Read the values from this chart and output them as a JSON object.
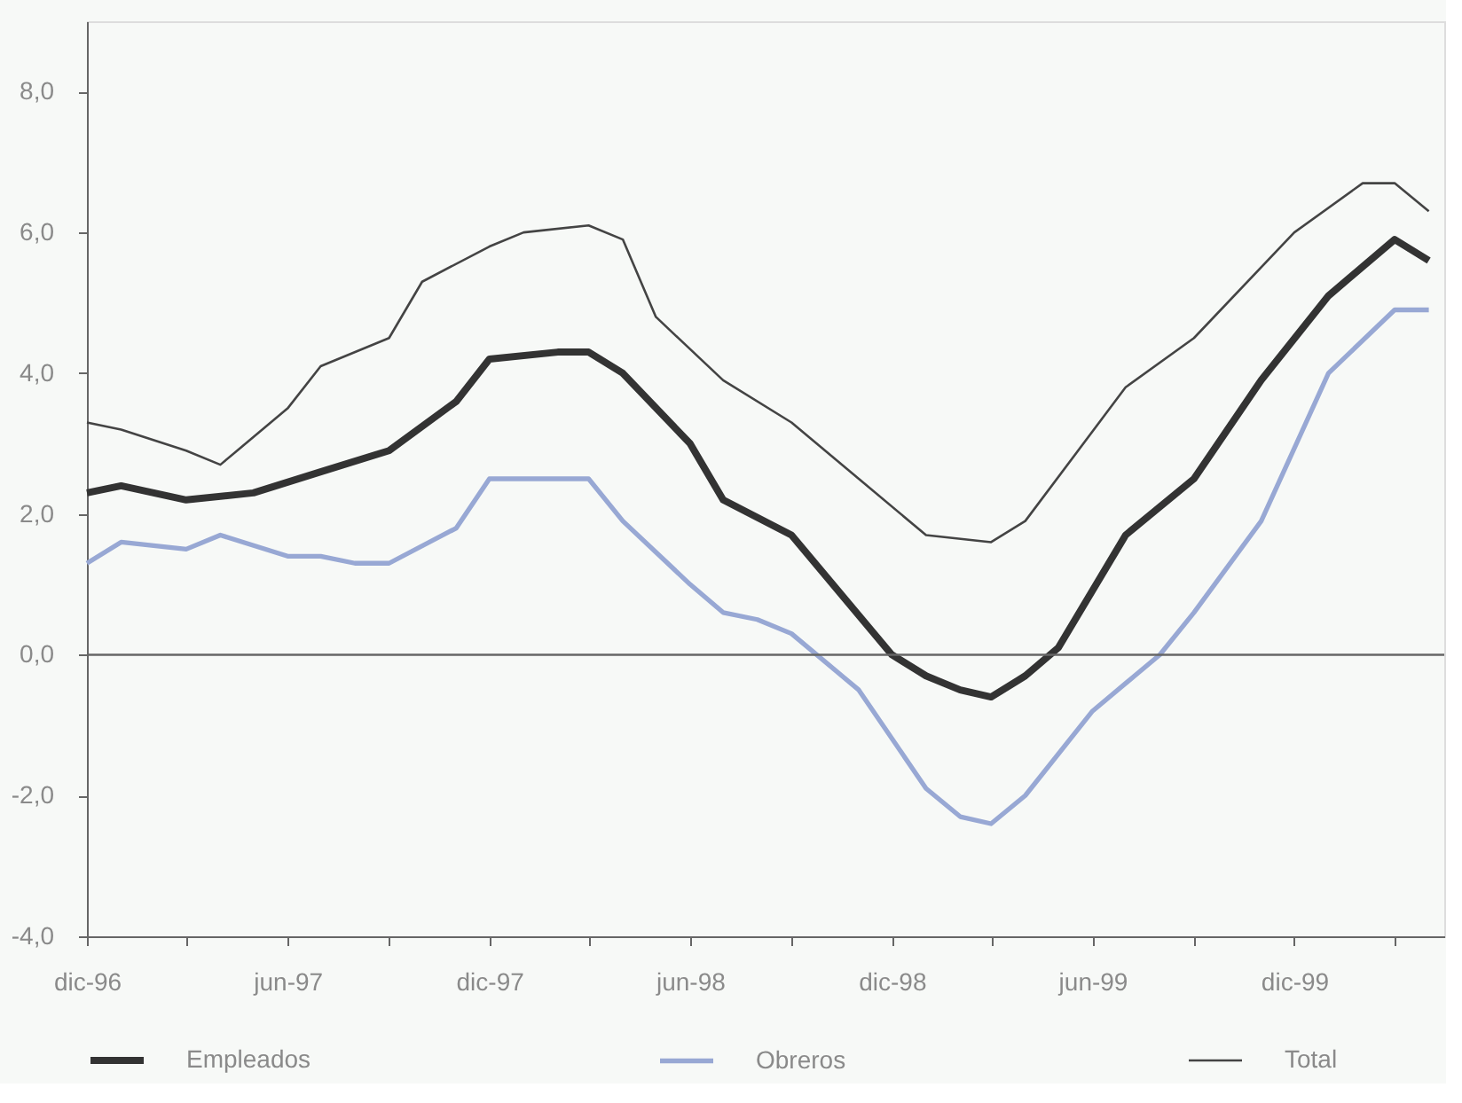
{
  "chart_data": {
    "type": "line",
    "ylim": [
      -4,
      9
    ],
    "yticks": [
      {
        "value": -4,
        "label": "-4,0"
      },
      {
        "value": -2,
        "label": "-2,0"
      },
      {
        "value": 0,
        "label": "0,0"
      },
      {
        "value": 2,
        "label": "2,0"
      },
      {
        "value": 4,
        "label": "4,0"
      },
      {
        "value": 6,
        "label": "6,0"
      },
      {
        "value": 8,
        "label": "8,0"
      }
    ],
    "xlim": [
      "1996-12",
      "2000-04-15"
    ],
    "xticks": [
      {
        "value": "1996-12",
        "label": "dic-96"
      },
      {
        "value": "1997-03",
        "label": null
      },
      {
        "value": "1997-06",
        "label": "jun-97"
      },
      {
        "value": "1997-09",
        "label": null
      },
      {
        "value": "1997-12",
        "label": "dic-97"
      },
      {
        "value": "1998-03",
        "label": null
      },
      {
        "value": "1998-06",
        "label": "jun-98"
      },
      {
        "value": "1998-09",
        "label": null
      },
      {
        "value": "1998-12",
        "label": "dic-98"
      },
      {
        "value": "1999-03",
        "label": null
      },
      {
        "value": "1999-06",
        "label": "jun-99"
      },
      {
        "value": "1999-09",
        "label": null
      },
      {
        "value": "1999-12",
        "label": "dic-99"
      },
      {
        "value": "2000-03",
        "label": null
      }
    ],
    "grid": false,
    "legend": "bottom",
    "ref_lines": [
      {
        "axis": "y",
        "value": 0,
        "color": "#666666"
      }
    ],
    "series": [
      {
        "name": "Empleados",
        "color": "#333333",
        "x": [
          "1996-12",
          "1997-01",
          "1997-03",
          "1997-05",
          "1997-07",
          "1997-09",
          "1997-11",
          "1997-12",
          "1998-02",
          "1998-03",
          "1998-04",
          "1998-06",
          "1998-07",
          "1998-09",
          "1998-12",
          "1999-01",
          "1999-02",
          "1999-03",
          "1999-04",
          "1999-05",
          "1999-07",
          "1999-09",
          "1999-11",
          "2000-01",
          "2000-03",
          "2000-04"
        ],
        "values": [
          2.3,
          2.4,
          2.2,
          2.3,
          2.6,
          2.9,
          3.6,
          4.2,
          4.3,
          4.3,
          4.0,
          3.0,
          2.2,
          1.7,
          0.0,
          -0.3,
          -0.5,
          -0.6,
          -0.3,
          0.1,
          1.7,
          2.5,
          3.9,
          5.1,
          5.9,
          5.6
        ]
      },
      {
        "name": "Obreros",
        "color": "#98a8d4",
        "x": [
          "1996-12",
          "1997-01",
          "1997-03",
          "1997-04",
          "1997-06",
          "1997-07",
          "1997-08",
          "1997-09",
          "1997-11",
          "1997-12",
          "1998-02",
          "1998-03",
          "1998-04",
          "1998-06",
          "1998-07",
          "1998-08",
          "1998-09",
          "1998-11",
          "1999-01",
          "1999-02",
          "1999-03",
          "1999-04",
          "1999-06",
          "1999-08",
          "1999-09",
          "1999-11",
          "2000-01",
          "2000-03",
          "2000-04"
        ],
        "values": [
          1.3,
          1.6,
          1.5,
          1.7,
          1.4,
          1.4,
          1.3,
          1.3,
          1.8,
          2.5,
          2.5,
          2.5,
          1.9,
          1.0,
          0.6,
          0.5,
          0.3,
          -0.5,
          -1.9,
          -2.3,
          -2.4,
          -2.0,
          -0.8,
          0.0,
          0.6,
          1.9,
          4.0,
          4.9,
          4.9
        ]
      },
      {
        "name": "Total",
        "color": "#444444",
        "x": [
          "1996-12",
          "1997-01",
          "1997-03",
          "1997-04",
          "1997-06",
          "1997-07",
          "1997-09",
          "1997-10",
          "1997-12",
          "1998-01",
          "1998-03",
          "1998-04",
          "1998-05",
          "1998-07",
          "1998-09",
          "1998-11",
          "1999-01",
          "1999-03",
          "1999-04",
          "1999-07",
          "1999-09",
          "1999-12",
          "2000-02",
          "2000-03",
          "2000-04"
        ],
        "values": [
          3.3,
          3.2,
          2.9,
          2.7,
          3.5,
          4.1,
          4.5,
          5.3,
          5.8,
          6.0,
          6.1,
          5.9,
          4.8,
          3.9,
          3.3,
          2.5,
          1.7,
          1.6,
          1.9,
          3.8,
          4.5,
          6.0,
          6.7,
          6.7,
          6.3
        ]
      }
    ]
  }
}
